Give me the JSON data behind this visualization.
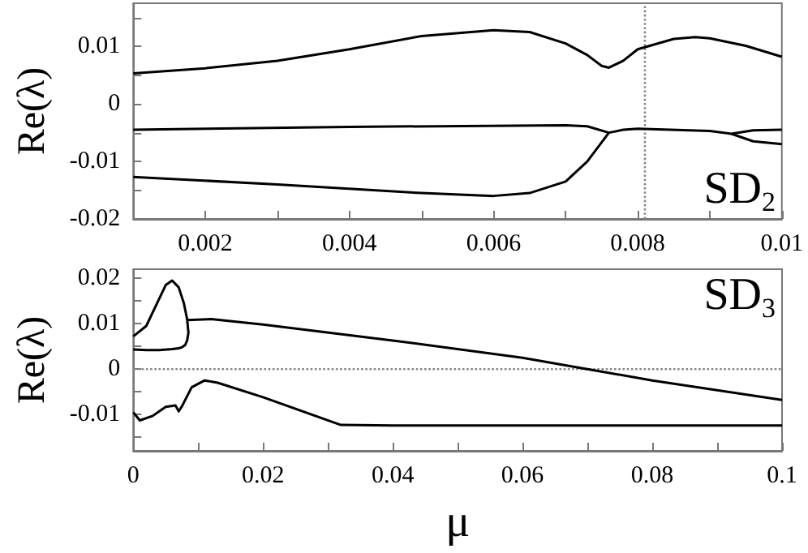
{
  "chart_data": [
    {
      "type": "line",
      "ylabel": "Re(λ)",
      "annotations": [
        "SD$_{2}$"
      ],
      "marker": "none",
      "line_style": "solid",
      "grid": false,
      "xlim": [
        0.001,
        0.01
      ],
      "xticks": [
        {
          "value": 0.001,
          "label": null
        },
        0.002,
        {
          "value": 0.003,
          "label": null
        },
        0.004,
        {
          "value": 0.005,
          "label": null
        },
        0.006,
        {
          "value": 0.007,
          "label": null
        },
        0.008,
        {
          "value": 0.009,
          "label": null
        },
        0.01
      ],
      "ylim": [
        -0.02,
        0.0175
      ],
      "yticks": [
        -0.02,
        {
          "value": -0.015,
          "label": null
        },
        -0.01,
        {
          "value": -0.005,
          "label": null
        },
        0,
        {
          "value": 0.005,
          "label": null
        },
        0.01,
        {
          "value": 0.015,
          "label": null
        }
      ],
      "ref_lines": [
        {
          "axis": "x",
          "value": 0.0081,
          "label": null,
          "color": "#888888",
          "line_style": "dotted"
        }
      ],
      "series": [
        {
          "color": "#000000",
          "x": [
            0.001,
            0.002,
            0.003,
            0.004,
            0.005,
            0.006,
            0.0065,
            0.007,
            0.0073,
            0.0075,
            0.0076,
            0.0078,
            0.008,
            0.0085,
            0.0088,
            0.009,
            0.0095,
            0.01
          ],
          "values": [
            0.0053,
            0.0062,
            0.0075,
            0.0095,
            0.0118,
            0.0128,
            0.0125,
            0.0105,
            0.0085,
            0.0066,
            0.0063,
            0.0075,
            0.0095,
            0.0113,
            0.0116,
            0.0114,
            0.0101,
            0.0082
          ]
        },
        {
          "color": "#000000",
          "x": [
            0.001,
            0.004,
            0.007,
            0.0073,
            0.0076,
            0.0078,
            0.008,
            0.009,
            0.0093,
            0.0096,
            0.01
          ],
          "values": [
            -0.0045,
            -0.004,
            -0.0037,
            -0.0039,
            -0.005,
            -0.0045,
            -0.0043,
            -0.0047,
            -0.0052,
            -0.0046,
            -0.0045
          ]
        },
        {
          "color": "#000000",
          "x": [
            0.001,
            0.003,
            0.005,
            0.006,
            0.0065,
            0.007,
            0.0073,
            0.0076
          ],
          "values": [
            -0.0127,
            -0.014,
            -0.0155,
            -0.016,
            -0.0155,
            -0.0135,
            -0.01,
            -0.005
          ]
        },
        {
          "color": "#000000",
          "x": [
            0.0093,
            0.0096,
            0.01
          ],
          "values": [
            -0.0052,
            -0.0065,
            -0.007
          ]
        }
      ]
    },
    {
      "type": "line",
      "xlabel": "μ",
      "ylabel": "Re(λ)",
      "annotations": [
        "SD$_{3}$"
      ],
      "marker": "none",
      "line_style": "solid",
      "grid": false,
      "xlim": [
        0,
        0.1
      ],
      "xticks": [
        0,
        {
          "value": 0.01,
          "label": null
        },
        0.02,
        {
          "value": 0.03,
          "label": null
        },
        0.04,
        {
          "value": 0.05,
          "label": null
        },
        0.06,
        {
          "value": 0.07,
          "label": null
        },
        0.08,
        {
          "value": 0.09,
          "label": null
        },
        0.1
      ],
      "ylim": [
        -0.018,
        0.022
      ],
      "yticks": [
        {
          "value": -0.015,
          "label": null
        },
        -0.01,
        {
          "value": -0.005,
          "label": null
        },
        0,
        {
          "value": 0.005,
          "label": null
        },
        0.01,
        {
          "value": 0.015,
          "label": null
        },
        0.02
      ],
      "ref_lines": [
        {
          "axis": "y",
          "value": 0,
          "label": null,
          "color": "#888888",
          "line_style": "dotted"
        }
      ],
      "series": [
        {
          "color": "#000000",
          "x": [
            0,
            0.002,
            0.004,
            0.005,
            0.006,
            0.007,
            0.0078,
            0.0083,
            0.0085,
            0.0083,
            0.008,
            0.0075,
            0.007,
            0.006,
            0.004,
            0.002,
            0
          ],
          "values": [
            0.0072,
            0.0095,
            0.0155,
            0.0185,
            0.0195,
            0.018,
            0.0145,
            0.011,
            0.008,
            0.0063,
            0.0053,
            0.0048,
            0.0046,
            0.0044,
            0.0042,
            0.0042,
            0.0043
          ]
        },
        {
          "color": "#000000",
          "x": [
            0.0083,
            0.012,
            0.02,
            0.04,
            0.06,
            0.07,
            0.08,
            0.1
          ],
          "values": [
            0.0108,
            0.011,
            0.0098,
            0.0063,
            0.0025,
            0,
            -0.0025,
            -0.0068
          ]
        },
        {
          "color": "#000000",
          "x": [
            0,
            0.001,
            0.003,
            0.005,
            0.0065,
            0.007,
            0.0075,
            0.009,
            0.011,
            0.013,
            0.02,
            0.032,
            0.04,
            0.1
          ],
          "values": [
            -0.0095,
            -0.0113,
            -0.0103,
            -0.0083,
            -0.008,
            -0.0093,
            -0.0082,
            -0.004,
            -0.0025,
            -0.003,
            -0.0062,
            -0.0123,
            -0.0124,
            -0.0124
          ]
        }
      ]
    }
  ]
}
